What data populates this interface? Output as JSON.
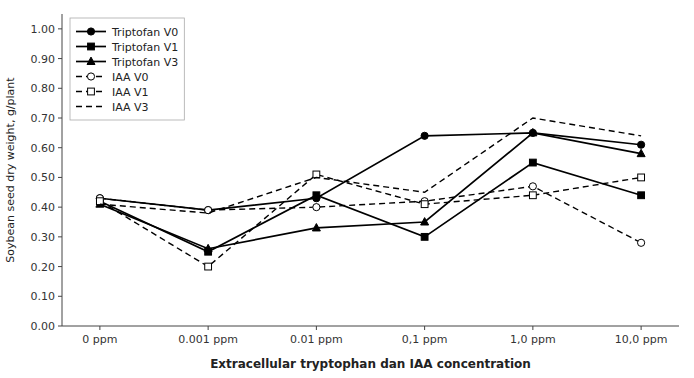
{
  "chart_data": {
    "type": "line",
    "categories": [
      "0 ppm",
      "0.001 ppm",
      "0.01 ppm",
      "0,1 ppm",
      "1,0 ppm",
      "10,0 ppm"
    ],
    "series": [
      {
        "name": "Triptofan V0",
        "color": "black",
        "marker": "circle",
        "line_style": "solid",
        "values": [
          0.43,
          0.39,
          0.43,
          0.64,
          0.65,
          0.61
        ]
      },
      {
        "name": "Triptofan V1",
        "color": "black",
        "marker": "square",
        "line_style": "solid",
        "values": [
          0.42,
          0.25,
          0.44,
          0.3,
          0.55,
          0.44
        ]
      },
      {
        "name": "Triptofan V3",
        "color": "black",
        "marker": "triangle",
        "line_style": "solid",
        "values": [
          0.41,
          0.26,
          0.33,
          0.35,
          0.65,
          0.58
        ]
      },
      {
        "name": "IAA V0",
        "color": "black",
        "marker": "open-circle",
        "line_style": "dashed",
        "values": [
          0.43,
          0.39,
          0.4,
          0.42,
          0.47,
          0.28
        ]
      },
      {
        "name": "IAA V1",
        "color": "black",
        "marker": "open-square",
        "line_style": "dashed",
        "values": [
          0.42,
          0.2,
          0.51,
          0.41,
          0.44,
          0.5
        ]
      },
      {
        "name": "IAA V3",
        "color": "black",
        "marker": "none",
        "line_style": "dashed",
        "values": [
          0.41,
          0.38,
          0.5,
          0.45,
          0.7,
          0.64
        ]
      }
    ],
    "ylabel": "Soybean seed dry weight, g/plant",
    "xlabel": "Extracellular tryptophan dan IAA concentration",
    "ylim": [
      0,
      1.05
    ],
    "yticks": [
      {
        "value": 0,
        "label": "0.00"
      },
      {
        "value": 0.1,
        "label": "0.10"
      },
      {
        "value": 0.2,
        "label": "0.20"
      },
      {
        "value": 0.3,
        "label": "0.30"
      },
      {
        "value": 0.4,
        "label": "0.40"
      },
      {
        "value": 0.5,
        "label": "0.50"
      },
      {
        "value": 0.6,
        "label": "0.60"
      },
      {
        "value": 0.7,
        "label": "0.70"
      },
      {
        "value": 0.8,
        "label": "0.80"
      },
      {
        "value": 0.9,
        "label": "0.90"
      },
      {
        "value": 1.0,
        "label": "1.00"
      }
    ],
    "grid": false,
    "legend": "upper-left"
  }
}
